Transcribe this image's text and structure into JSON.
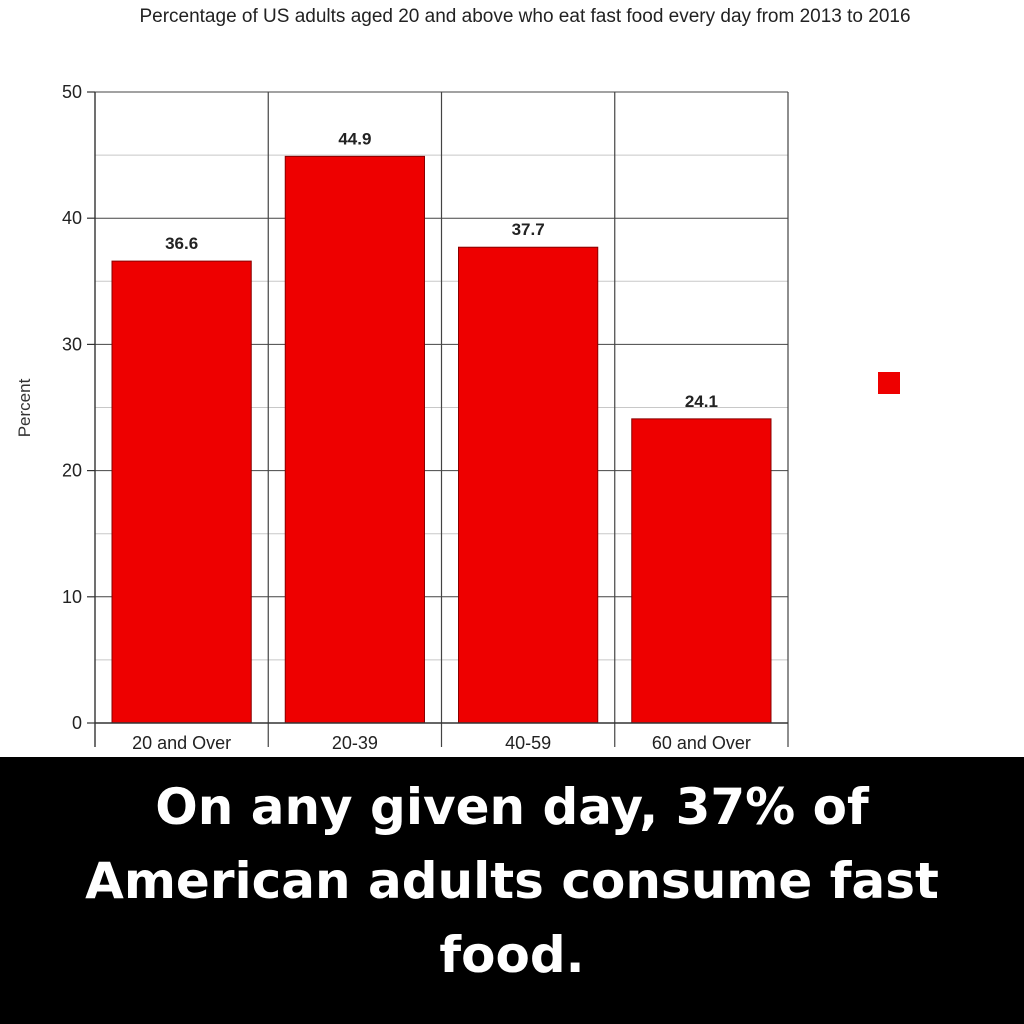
{
  "chart_data": {
    "type": "bar",
    "title": "Percentage of US adults aged 20 and above who eat fast food every day from 2013 to 2016",
    "ylabel": "Percent",
    "xlabel": "",
    "ylim": [
      0,
      50
    ],
    "yticks": [
      0,
      10,
      20,
      30,
      40,
      50
    ],
    "categories": [
      "20 and Over",
      "20-39",
      "40-59",
      "60 and Over"
    ],
    "values": [
      36.6,
      44.9,
      37.7,
      24.1
    ],
    "data_labels": [
      "36.6",
      "44.9",
      "37.7",
      "24.1"
    ],
    "grid": true,
    "legend": "right",
    "bar_color": "#ee0000"
  },
  "caption": "On any given day, 37% of American adults consume fast food."
}
